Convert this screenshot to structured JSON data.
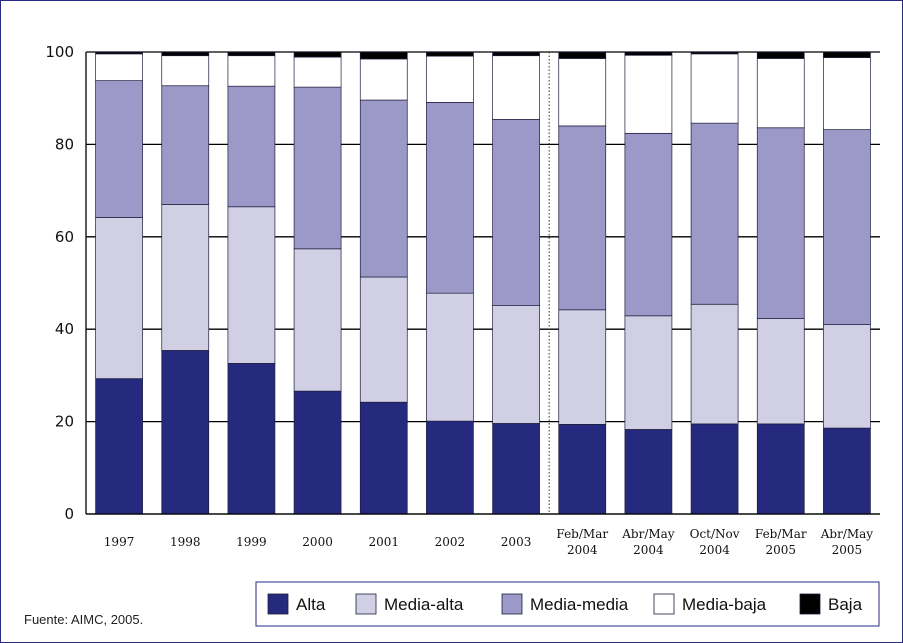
{
  "chart_data": {
    "type": "bar",
    "stacked": true,
    "categories": [
      "1997",
      "1998",
      "1999",
      "2000",
      "2001",
      "2002",
      "2003",
      "Feb/Mar 2004",
      "Abr/May 2004",
      "Oct/Nov 2004",
      "Feb/Mar 2005",
      "Abr/May 2005"
    ],
    "series": [
      {
        "name": "Alta",
        "color": "#252a7f",
        "values": [
          29.3,
          35.4,
          32.6,
          26.6,
          24.2,
          20.1,
          19.6,
          19.4,
          18.3,
          19.5,
          19.5,
          18.6
        ]
      },
      {
        "name": "Media-alta",
        "color": "#d1cfe4",
        "values": [
          34.9,
          31.6,
          33.9,
          30.8,
          27.1,
          27.7,
          25.5,
          24.8,
          24.6,
          25.9,
          22.8,
          22.4
        ]
      },
      {
        "name": "Media-media",
        "color": "#9c99c9",
        "values": [
          29.6,
          25.7,
          26.1,
          35.0,
          38.3,
          41.3,
          40.3,
          39.8,
          39.5,
          39.2,
          41.3,
          42.2
        ]
      },
      {
        "name": "Media-baja",
        "color": "#ffffff",
        "values": [
          5.8,
          6.5,
          6.6,
          6.5,
          8.9,
          10.0,
          13.8,
          14.6,
          16.9,
          15.0,
          15.0,
          15.6
        ]
      },
      {
        "name": "Baja",
        "color": "#000000",
        "values": [
          0.4,
          0.8,
          0.8,
          1.1,
          1.5,
          0.9,
          0.8,
          1.4,
          0.7,
          0.4,
          1.4,
          1.2
        ]
      }
    ],
    "ylim": [
      0,
      100
    ],
    "yticks": [
      "0",
      "20",
      "40",
      "60",
      "80",
      "100"
    ],
    "grid": true,
    "legend_position": "bottom-right",
    "divider_after_category": 7
  },
  "source": "Fuente: AIMC, 2005."
}
